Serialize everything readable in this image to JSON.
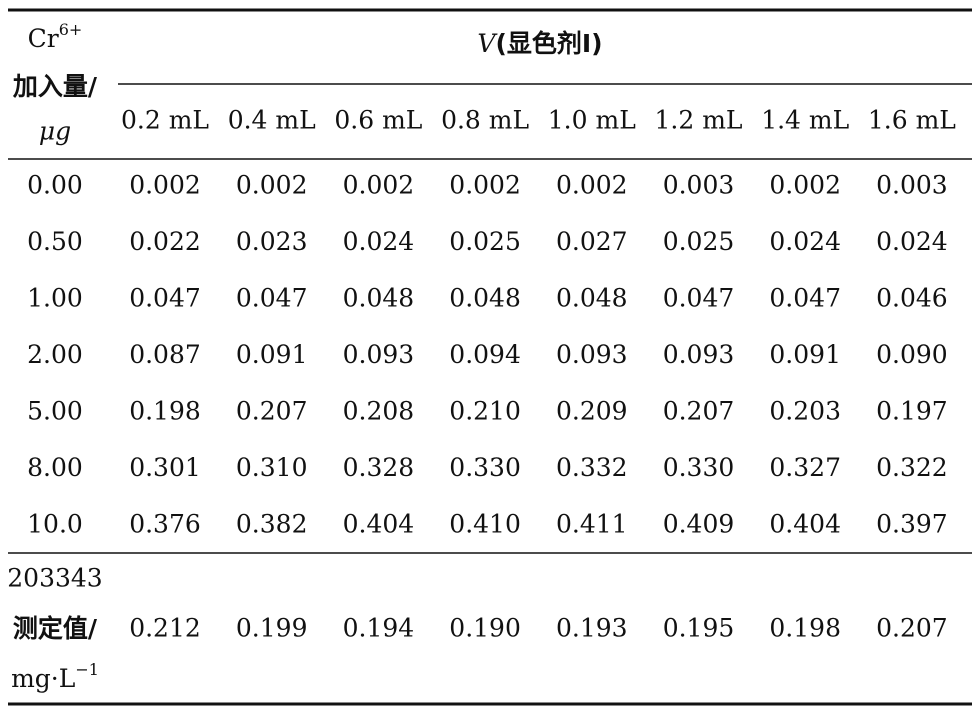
{
  "table": {
    "corner": {
      "base": "Cr",
      "sup": "6+",
      "line2": "加入量/",
      "line3": "μg"
    },
    "group_header": {
      "symbol": "V",
      "text": "(显色剂Ⅰ)"
    },
    "columns": [
      "0.2 mL",
      "0.4 mL",
      "0.6 mL",
      "0.8 mL",
      "1.0 mL",
      "1.2 mL",
      "1.4 mL",
      "1.6 mL"
    ],
    "rows": [
      [
        "0.00",
        "0.002",
        "0.002",
        "0.002",
        "0.002",
        "0.002",
        "0.003",
        "0.002",
        "0.003"
      ],
      [
        "0.50",
        "0.022",
        "0.023",
        "0.024",
        "0.025",
        "0.027",
        "0.025",
        "0.024",
        "0.024"
      ],
      [
        "1.00",
        "0.047",
        "0.047",
        "0.048",
        "0.048",
        "0.048",
        "0.047",
        "0.047",
        "0.046"
      ],
      [
        "2.00",
        "0.087",
        "0.091",
        "0.093",
        "0.094",
        "0.093",
        "0.093",
        "0.091",
        "0.090"
      ],
      [
        "5.00",
        "0.198",
        "0.207",
        "0.208",
        "0.210",
        "0.209",
        "0.207",
        "0.203",
        "0.197"
      ],
      [
        "8.00",
        "0.301",
        "0.310",
        "0.328",
        "0.330",
        "0.332",
        "0.330",
        "0.327",
        "0.322"
      ],
      [
        "10.0",
        "0.376",
        "0.382",
        "0.404",
        "0.410",
        "0.411",
        "0.409",
        "0.404",
        "0.397"
      ]
    ],
    "footer": {
      "line1": "203343",
      "line2": "测定值/",
      "line3": "mg·L",
      "sup": "−1",
      "values": [
        "0.212",
        "0.199",
        "0.194",
        "0.190",
        "0.193",
        "0.195",
        "0.198",
        "0.207"
      ]
    }
  }
}
